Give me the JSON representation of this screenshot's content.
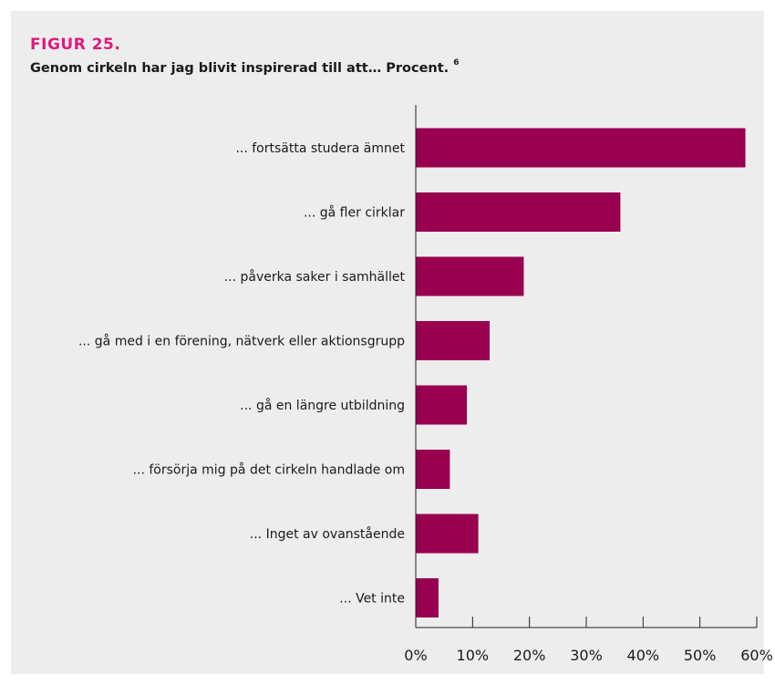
{
  "figure": {
    "label": "FIGUR 25.",
    "title": "Genom cirkeln har jag blivit inspirerad till att… Procent.",
    "footnote": "6"
  },
  "colors": {
    "panel_background": "#ededed",
    "accent": "#e0197d",
    "bar": "#990050",
    "axis": "#222222"
  },
  "chart_data": {
    "type": "bar",
    "orientation": "horizontal",
    "categories": [
      "... fortsätta studera ämnet",
      "... gå fler cirklar",
      "... påverka saker i samhället",
      "... gå med i en förening, nätverk eller aktionsgrupp",
      "... gå en längre utbildning",
      "... försörja mig på det cirkeln handlade om",
      "... Inget av ovanstående",
      "... Vet inte"
    ],
    "values": [
      58,
      36,
      19,
      13,
      9,
      6,
      11,
      4
    ],
    "unit": "%",
    "xlim": [
      0,
      60
    ],
    "xticks": [
      0,
      10,
      20,
      30,
      40,
      50,
      60
    ],
    "xtick_labels": [
      "0%",
      "10%",
      "20%",
      "30%",
      "40%",
      "50%",
      "60%"
    ],
    "grid": false,
    "legend": "none"
  }
}
